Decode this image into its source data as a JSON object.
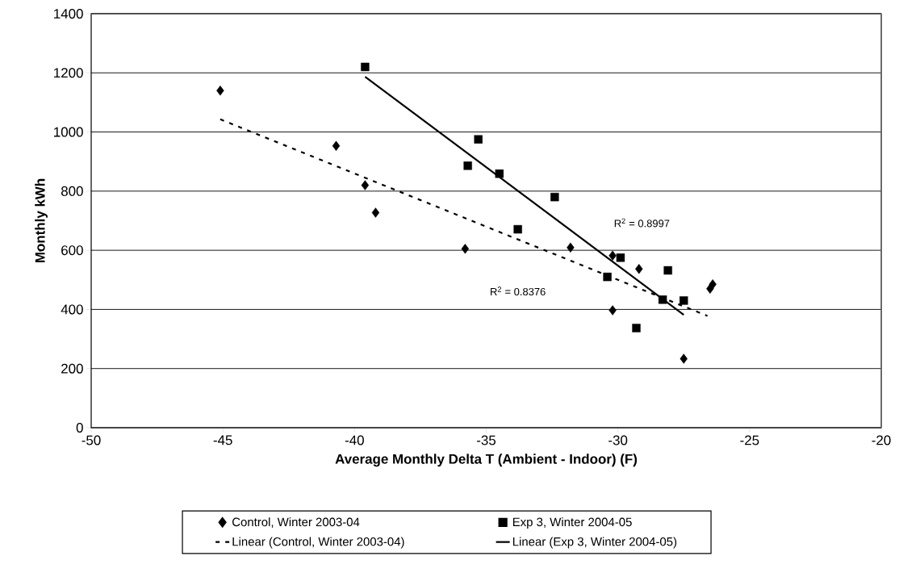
{
  "chart_data": {
    "type": "scatter",
    "xlabel": "Average Monthly Delta T (Ambient - Indoor) (F)",
    "ylabel": "Monthly kWh",
    "xlim": [
      -50,
      -20
    ],
    "xticks": [
      -50,
      -45,
      -40,
      -35,
      -30,
      -25,
      -20
    ],
    "ylim": [
      0,
      1400
    ],
    "yticks": [
      0,
      200,
      400,
      600,
      800,
      1000,
      1200,
      1400
    ],
    "grid": "y",
    "legend": "bottom",
    "series": [
      {
        "name": "Control, Winter 2003-04",
        "marker": "diamond",
        "color": "#000000",
        "x": [
          -45.1,
          -40.7,
          -39.6,
          -39.2,
          -35.8,
          -31.8,
          -30.2,
          -29.2,
          -30.2,
          -27.5,
          -26.5,
          -26.4
        ],
        "values": [
          1140,
          953,
          820,
          727,
          605,
          609,
          582,
          537,
          397,
          233,
          470,
          485
        ]
      },
      {
        "name": "Exp 3, Winter 2004-05",
        "marker": "square",
        "color": "#000000",
        "x": [
          -39.6,
          -35.7,
          -35.3,
          -34.5,
          -32.4,
          -33.8,
          -30.4,
          -29.9,
          -28.1,
          -28.3,
          -27.5,
          -29.3
        ],
        "values": [
          1220,
          886,
          975,
          859,
          780,
          671,
          510,
          575,
          532,
          433,
          430,
          337
        ]
      },
      {
        "name": "Linear (Control, Winter 2003-04)",
        "type": "line",
        "marker": "none",
        "line_style": "dashed",
        "color": "#000000",
        "x": [
          -45.1,
          -26.6
        ],
        "values": [
          1043,
          378
        ]
      },
      {
        "name": "Linear (Exp 3, Winter 2004-05)",
        "type": "line",
        "marker": "none",
        "line_style": "solid",
        "color": "#000000",
        "x": [
          -39.6,
          -27.5
        ],
        "values": [
          1187,
          382
        ]
      }
    ],
    "annotations": [
      "R$^{2}$ = 0.8997",
      "R$^{2}$ = 0.8376"
    ]
  }
}
